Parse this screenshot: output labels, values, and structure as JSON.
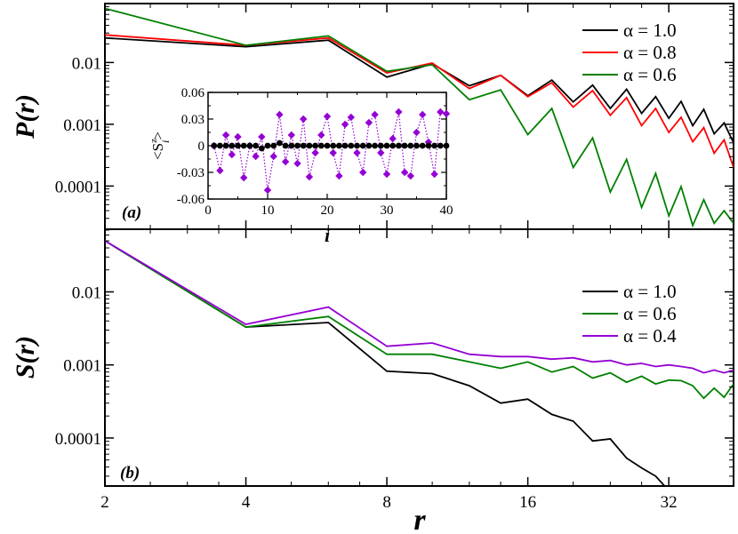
{
  "chart_data": [
    {
      "id": "panel_a",
      "type": "line",
      "panel_label": "(a)",
      "ylabel": "P(r)",
      "xlabel": "",
      "xscale": "log2",
      "yscale": "log",
      "xlim": [
        2,
        44
      ],
      "ylim": [
        2e-05,
        0.09
      ],
      "xticks": [
        2,
        4,
        8,
        16,
        32
      ],
      "xtick_labels": [
        "",
        "",
        "",
        "",
        ""
      ],
      "yticks": [
        0.0001,
        0.001,
        0.01
      ],
      "ytick_labels": [
        "0.0001",
        "0.001",
        "0.01"
      ],
      "legend_position": "top-right",
      "series": [
        {
          "name": "α = 1.0",
          "color": "#000000",
          "x": [
            2,
            4,
            6,
            8,
            10,
            12,
            14,
            16,
            18,
            20,
            22,
            24,
            26,
            28,
            30,
            32,
            34,
            36,
            38,
            40,
            42,
            44
          ],
          "y": [
            0.025,
            0.018,
            0.023,
            0.0058,
            0.0095,
            0.0042,
            0.0062,
            0.0029,
            0.0052,
            0.0023,
            0.0043,
            0.0018,
            0.0037,
            0.0015,
            0.0028,
            0.00125,
            0.00235,
            0.00095,
            0.00175,
            0.0007,
            0.00105,
            0.0005
          ]
        },
        {
          "name": "α = 0.8",
          "color": "#ff0000",
          "x": [
            2,
            4,
            6,
            8,
            10,
            12,
            14,
            16,
            18,
            20,
            22,
            24,
            26,
            28,
            30,
            32,
            34,
            36,
            38,
            40,
            42,
            44
          ],
          "y": [
            0.028,
            0.019,
            0.025,
            0.0068,
            0.0098,
            0.0038,
            0.0062,
            0.0028,
            0.0047,
            0.0019,
            0.0035,
            0.0014,
            0.0027,
            0.00095,
            0.0018,
            0.00074,
            0.0013,
            0.00052,
            0.00088,
            0.00034,
            0.00056,
            0.0002
          ]
        },
        {
          "name": "α = 0.6",
          "color": "#008000",
          "x": [
            2,
            4,
            6,
            8,
            10,
            12,
            14,
            16,
            18,
            20,
            22,
            24,
            26,
            28,
            30,
            32,
            34,
            36,
            38,
            40,
            42,
            44
          ],
          "y": [
            0.075,
            0.019,
            0.027,
            0.0072,
            0.0092,
            0.0025,
            0.0036,
            0.00068,
            0.0018,
            0.0002,
            0.0006,
            8e-05,
            0.00027,
            4.5e-05,
            0.00016,
            3.3e-05,
            9.8e-05,
            2.3e-05,
            6e-05,
            2.5e-05,
            4e-05,
            2.5e-05
          ]
        }
      ],
      "inset": {
        "type": "scatter",
        "xlabel": "i",
        "ylabel": "<S",
        "ylabel_sup": "z",
        "ylabel_sub": "i",
        "ylabel_end": ">",
        "xlim": [
          0,
          40
        ],
        "ylim": [
          -0.06,
          0.06
        ],
        "xticks": [
          0,
          10,
          20,
          30,
          40
        ],
        "xtick_labels": [
          "0",
          "10",
          "20",
          "30",
          "40"
        ],
        "yticks": [
          -0.06,
          -0.03,
          0,
          0.03,
          0.06
        ],
        "ytick_labels": [
          "-0.06",
          "-0.03",
          "0",
          "0.03",
          "0.06"
        ],
        "series": [
          {
            "name": "diamonds",
            "color": "#9400d3",
            "marker": "diamond",
            "x": [
              1,
              2,
              3,
              4,
              5,
              6,
              7,
              8,
              9,
              10,
              11,
              12,
              13,
              14,
              15,
              16,
              17,
              18,
              19,
              20,
              21,
              22,
              23,
              24,
              25,
              26,
              27,
              28,
              29,
              30,
              31,
              32,
              33,
              34,
              35,
              36,
              37,
              38,
              39,
              40
            ],
            "y": [
              0.0,
              -0.028,
              0.012,
              -0.01,
              0.01,
              -0.036,
              0.0,
              -0.012,
              0.01,
              -0.05,
              -0.012,
              0.035,
              -0.018,
              0.012,
              -0.02,
              0.03,
              -0.035,
              -0.008,
              0.012,
              0.033,
              -0.008,
              -0.034,
              0.024,
              0.032,
              -0.008,
              -0.03,
              0.026,
              0.035,
              -0.008,
              -0.032,
              0.008,
              0.038,
              -0.03,
              -0.034,
              0.015,
              0.035,
              0.004,
              -0.032,
              0.038,
              0.036
            ]
          },
          {
            "name": "circles",
            "color": "#000000",
            "marker": "circle",
            "x": [
              1,
              2,
              3,
              4,
              5,
              6,
              7,
              8,
              9,
              10,
              11,
              12,
              13,
              14,
              15,
              16,
              17,
              18,
              19,
              20,
              21,
              22,
              23,
              24,
              25,
              26,
              27,
              28,
              29,
              30,
              31,
              32,
              33,
              34,
              35,
              36,
              37,
              38,
              39,
              40
            ],
            "y": [
              0,
              0,
              0,
              0,
              0,
              0,
              0,
              0,
              -0.003,
              0,
              0,
              0.003,
              0,
              0,
              0,
              0,
              0,
              0,
              0,
              0,
              0,
              0,
              0,
              0,
              0,
              0,
              0,
              0,
              0,
              0,
              0,
              0,
              0,
              0,
              0,
              0,
              0,
              0,
              0,
              0
            ]
          }
        ]
      }
    },
    {
      "id": "panel_b",
      "type": "line",
      "panel_label": "(b)",
      "ylabel": "S(r)",
      "xlabel": "r",
      "xscale": "log2",
      "yscale": "log",
      "xlim": [
        2,
        44
      ],
      "ylim": [
        2.2e-05,
        0.072
      ],
      "xticks": [
        2,
        4,
        8,
        16,
        32
      ],
      "xtick_labels": [
        "2",
        "4",
        "8",
        "16",
        "32"
      ],
      "yticks": [
        0.0001,
        0.001,
        0.01
      ],
      "ytick_labels": [
        "0.0001",
        "0.001",
        "0.01"
      ],
      "legend_position": "top-right",
      "series": [
        {
          "name": "α = 1.0",
          "color": "#000000",
          "x": [
            2,
            4,
            6,
            8,
            10,
            12,
            14,
            16,
            18,
            20,
            22,
            24,
            26,
            28,
            30,
            32,
            34,
            36,
            38
          ],
          "y": [
            0.05,
            0.0033,
            0.0038,
            0.00082,
            0.00076,
            0.00052,
            0.0003,
            0.00034,
            0.00021,
            0.00017,
            9.1e-05,
            9.7e-05,
            5.3e-05,
            3.9e-05,
            3e-05,
            1.9e-05,
            2.1e-05,
            1.6e-05,
            1.7e-05
          ]
        },
        {
          "name": "α = 0.6",
          "color": "#008000",
          "x": [
            2,
            4,
            6,
            8,
            10,
            12,
            14,
            16,
            18,
            20,
            22,
            24,
            26,
            28,
            30,
            32,
            34,
            36,
            38,
            40,
            42,
            44
          ],
          "y": [
            0.05,
            0.0033,
            0.0046,
            0.0014,
            0.0014,
            0.0011,
            0.0009,
            0.0011,
            0.0008,
            0.00095,
            0.00066,
            0.00078,
            0.00058,
            0.0007,
            0.00055,
            0.00062,
            0.00061,
            0.00052,
            0.00035,
            0.00048,
            0.00036,
            0.00055
          ]
        },
        {
          "name": "α = 0.4",
          "color": "#9400d3",
          "x": [
            2,
            4,
            6,
            8,
            10,
            12,
            14,
            16,
            18,
            20,
            22,
            24,
            26,
            28,
            30,
            32,
            34,
            36,
            38,
            40,
            42,
            44
          ],
          "y": [
            0.05,
            0.0036,
            0.0062,
            0.0018,
            0.002,
            0.0014,
            0.0013,
            0.0013,
            0.0012,
            0.00125,
            0.0011,
            0.00115,
            0.001,
            0.00105,
            0.00095,
            0.001,
            0.00095,
            0.0009,
            0.00078,
            0.00085,
            0.00078,
            0.00085
          ]
        }
      ]
    }
  ]
}
